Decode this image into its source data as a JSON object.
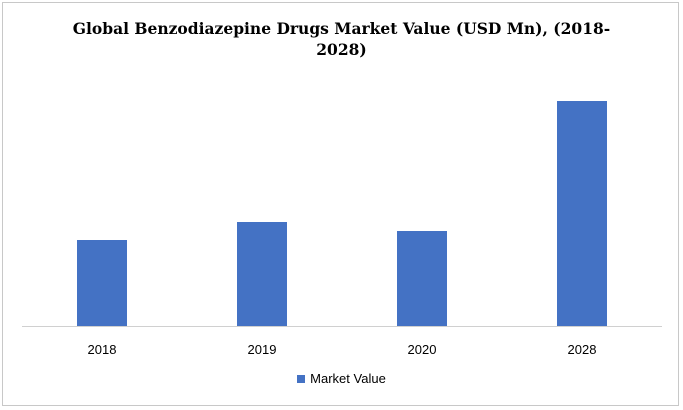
{
  "chart_data": {
    "type": "bar",
    "title": "Global Benzodiazepine Drugs Market Value (USD Mn), (2018-2028)",
    "categories": [
      "2018",
      "2019",
      "2020",
      "2028"
    ],
    "series": [
      {
        "name": "Market Value",
        "values": [
          86,
          104,
          95,
          225
        ],
        "color": "#4472C4"
      }
    ],
    "xlabel": "",
    "ylabel": "",
    "ylim": [
      0,
      250
    ],
    "y_axis_shown": false,
    "grid": false,
    "legend_position": "bottom"
  }
}
